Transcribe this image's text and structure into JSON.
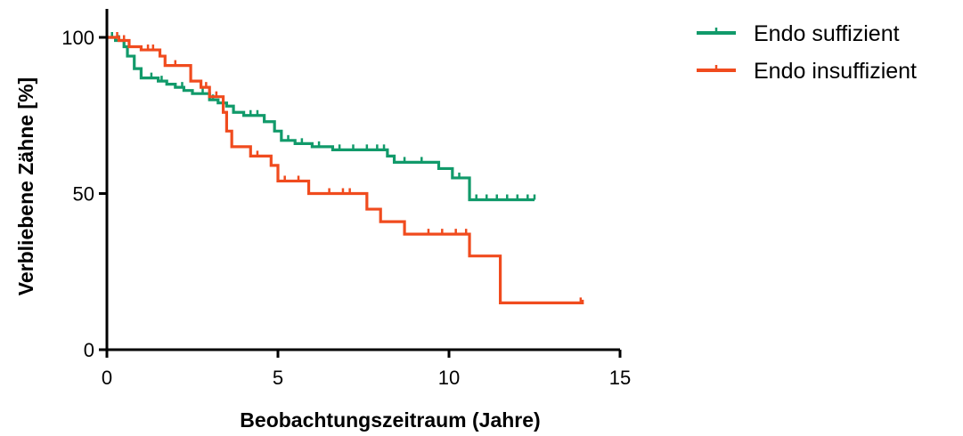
{
  "chart_data": {
    "type": "line",
    "subtype": "kaplan-meier step survival curve",
    "title": "",
    "xlabel": "Beobachtungszeitraum (Jahre)",
    "ylabel": "Verbliebene Zähne [%]",
    "xlim": [
      0,
      15
    ],
    "ylim": [
      0,
      100
    ],
    "xticks": [
      0,
      5,
      10,
      15
    ],
    "yticks": [
      0,
      50,
      100
    ],
    "grid": false,
    "legend_position": "top-right",
    "series": [
      {
        "name": "Endo suffizient",
        "color": "#119a6a",
        "x": [
          0,
          0.25,
          0.5,
          0.6,
          0.8,
          1.0,
          1.5,
          1.75,
          2.0,
          2.25,
          2.5,
          3.0,
          3.25,
          3.5,
          3.7,
          4.0,
          4.6,
          4.9,
          5.1,
          5.5,
          6.0,
          6.6,
          8.2,
          8.4,
          9.7,
          10.1,
          10.6,
          12.5
        ],
        "y": [
          100,
          99,
          97,
          94,
          90,
          87,
          86,
          85,
          84,
          83,
          82,
          80,
          79,
          78,
          76,
          75,
          73,
          70,
          67,
          66,
          65,
          64,
          62,
          60,
          58,
          55,
          48,
          48
        ],
        "censored_x": [
          0.15,
          0.35,
          1.3,
          1.6,
          2.2,
          2.8,
          3.1,
          4.2,
          4.4,
          5.3,
          5.7,
          6.2,
          6.8,
          7.2,
          7.6,
          7.9,
          8.1,
          8.7,
          9.2,
          10.3,
          10.8,
          11.1,
          11.4,
          11.7,
          12.0,
          12.3,
          12.5
        ]
      },
      {
        "name": "Endo insuffizient",
        "color": "#f04b1e",
        "x": [
          0,
          0.35,
          0.65,
          1.0,
          1.55,
          1.7,
          2.45,
          2.75,
          3.0,
          3.4,
          3.5,
          3.65,
          4.2,
          4.8,
          5.0,
          5.9,
          7.6,
          8.0,
          8.7,
          10.6,
          11.5,
          13.9
        ],
        "y": [
          100,
          99,
          97,
          96,
          94,
          91,
          86,
          84,
          81,
          76,
          70,
          65,
          62,
          59,
          54,
          50,
          45,
          41,
          37,
          30,
          15,
          16
        ],
        "censored_x": [
          0.3,
          0.5,
          1.2,
          1.35,
          2.0,
          2.9,
          3.2,
          4.4,
          5.2,
          5.6,
          6.5,
          6.9,
          7.1,
          9.4,
          9.8,
          10.2,
          10.5,
          13.85
        ]
      }
    ]
  }
}
